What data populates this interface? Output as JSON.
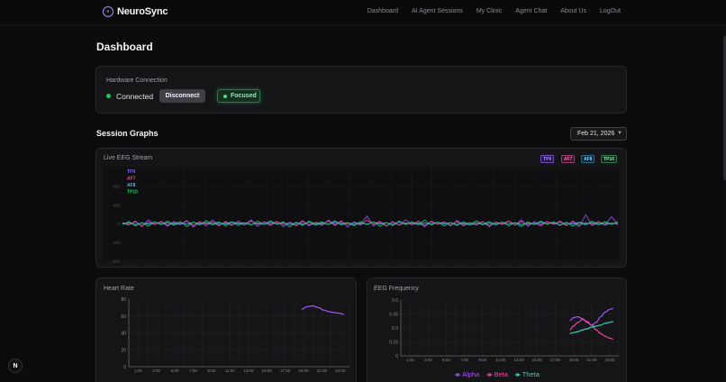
{
  "header": {
    "brand": "NeuroSync",
    "nav": [
      "Dashboard",
      "AI Agent Sessions",
      "My Clinic",
      "Agent Chat",
      "About Us",
      "LogOut"
    ]
  },
  "page": {
    "title": "Dashboard"
  },
  "hardware": {
    "label": "Hardware Connection",
    "status": "Connected",
    "disconnect_label": "Disconnect",
    "focus_label": "Focused"
  },
  "session": {
    "title": "Session Graphs",
    "date": "Feb 21, 2026"
  },
  "eeg_stream": {
    "title": "Live EEG Stream",
    "channels": [
      "TP9",
      "AF7",
      "AF8",
      "TP10"
    ],
    "channel_colors": [
      "#8b5cf6",
      "#ec4899",
      "#38bdf8",
      "#22c55e"
    ]
  },
  "heart_rate": {
    "title": "Heart Rate"
  },
  "eeg_frequency": {
    "title": "EEG Frequency"
  },
  "colors": {
    "accent": "#a78bfa",
    "connected": "#22c55e",
    "alpha": "#a855f7",
    "beta": "#ec4899",
    "theta": "#2dd4bf"
  },
  "chart_data": [
    {
      "type": "line",
      "title": "Live EEG Stream",
      "ylabel": "",
      "y_ticks": [
        "",
        "800",
        "400",
        "0",
        "-400",
        "-800"
      ],
      "series": [
        {
          "name": "TP9",
          "values": [
            0,
            -40,
            60,
            -80,
            90,
            -30,
            40,
            -70,
            50,
            -20,
            70,
            -90,
            30,
            -60,
            80,
            -40,
            20,
            -50,
            60,
            -30,
            90,
            -70,
            40,
            -20,
            50,
            -80,
            30,
            -40,
            70,
            -60,
            20,
            -50,
            80,
            -30,
            60,
            -90,
            40,
            -20,
            180,
            -60,
            30,
            -70,
            50,
            -40,
            90,
            -30,
            20,
            -80,
            60,
            -20,
            40,
            -60,
            70,
            -30,
            20,
            -40,
            50,
            -80,
            30,
            -20,
            60,
            -40,
            90,
            -70,
            40,
            -30,
            50,
            -20,
            60,
            -40,
            30,
            -80,
            210,
            -50,
            20,
            -40,
            170,
            -30
          ]
        },
        {
          "name": "AF7",
          "values": [
            20,
            -30,
            40,
            -60,
            30,
            -20,
            50,
            -40,
            20,
            -30,
            60,
            -50,
            40,
            -20,
            30,
            -60,
            50,
            -30,
            20,
            -40,
            60,
            -20,
            30,
            -50,
            40,
            -30,
            20,
            -60,
            50,
            -40,
            30,
            -20,
            60,
            -50,
            40,
            -30,
            20,
            -40,
            80,
            -20,
            50,
            -60,
            30,
            -40,
            20,
            -30,
            60,
            -50,
            40,
            -20,
            30,
            -40,
            50,
            -60,
            20,
            -30,
            40,
            -50,
            30,
            -20,
            60,
            -40,
            50,
            -30,
            20,
            -60,
            40,
            -20,
            30,
            -50,
            60,
            -40,
            20,
            -30,
            50,
            -40,
            20,
            -30
          ]
        },
        {
          "name": "AF8",
          "values": [
            -10,
            20,
            -30,
            10,
            -20,
            30,
            -10,
            20,
            -40,
            10,
            -20,
            30,
            -10,
            20,
            -30,
            10,
            -20,
            40,
            -10,
            20,
            -30,
            10,
            -20,
            30,
            -10,
            20,
            -30,
            10,
            -20,
            30,
            -40,
            10,
            -20,
            30,
            -10,
            20,
            -30,
            10,
            -20,
            30,
            -10,
            20,
            -30,
            40,
            -10,
            20,
            -30,
            10,
            -20,
            30,
            -10,
            20,
            -30,
            10,
            -40,
            20,
            -30,
            10,
            -20,
            30,
            -10,
            20,
            -30,
            10,
            -20,
            30,
            -10,
            20,
            -40,
            10,
            -20,
            30,
            -10,
            20,
            -30,
            10,
            -20,
            30
          ]
        },
        {
          "name": "TP10",
          "values": [
            -30,
            50,
            -60,
            20,
            -70,
            40,
            -30,
            60,
            -20,
            50,
            -80,
            30,
            -40,
            70,
            -20,
            40,
            -60,
            30,
            -50,
            20,
            -40,
            60,
            -30,
            70,
            -20,
            40,
            -90,
            30,
            -50,
            60,
            -20,
            40,
            -30,
            70,
            -40,
            20,
            -60,
            50,
            -30,
            40,
            -70,
            20,
            -50,
            60,
            -30,
            40,
            -20,
            80,
            -40,
            30,
            -60,
            20,
            -50,
            40,
            -30,
            70,
            -20,
            50,
            -40,
            30,
            -60,
            20,
            -80,
            40,
            -30,
            60,
            -20,
            40,
            -50,
            30,
            -70,
            20,
            -40,
            60,
            -30,
            50,
            -20,
            40
          ]
        }
      ]
    },
    {
      "type": "line",
      "title": "Heart Rate",
      "categories": [
        "1:00",
        "3:00",
        "5:00",
        "7:00",
        "9:00",
        "11:00",
        "13:00",
        "15:00",
        "17:00",
        "19:00",
        "21:00",
        "23:00"
      ],
      "ylim": [
        0,
        80
      ],
      "y_ticks": [
        0,
        20,
        40,
        60,
        80
      ],
      "series": [
        {
          "name": "",
          "x": [
            18.8,
            19.4,
            20.0,
            20.6,
            21.2,
            21.8,
            22.4,
            23.0,
            23.4
          ],
          "values": [
            68,
            71,
            72,
            70,
            67,
            65,
            64,
            63,
            62
          ]
        }
      ]
    },
    {
      "type": "line",
      "title": "EEG Frequency",
      "categories": [
        "1:00",
        "3:00",
        "5:00",
        "7:00",
        "9:00",
        "11:00",
        "13:00",
        "15:00",
        "17:00",
        "19:00",
        "21:00",
        "23:00"
      ],
      "ylim": [
        0,
        0.6
      ],
      "y_ticks": [
        "0",
        "0.15",
        "0.3",
        "0.45",
        "0.6"
      ],
      "legend_position": "bottom",
      "series": [
        {
          "name": "Alpha",
          "x": [
            18.6,
            19.0,
            19.5,
            20.0,
            20.5,
            21.0,
            21.5,
            22.0,
            22.5,
            23.0,
            23.4
          ],
          "values": [
            0.38,
            0.41,
            0.42,
            0.4,
            0.36,
            0.33,
            0.36,
            0.42,
            0.47,
            0.5,
            0.51
          ]
        },
        {
          "name": "Beta",
          "x": [
            18.6,
            19.0,
            19.5,
            20.0,
            20.5,
            21.0,
            21.5,
            22.0,
            22.5,
            23.0,
            23.4
          ],
          "values": [
            0.28,
            0.32,
            0.36,
            0.39,
            0.37,
            0.33,
            0.28,
            0.24,
            0.21,
            0.19,
            0.18
          ]
        },
        {
          "name": "Theta",
          "x": [
            18.6,
            19.0,
            19.5,
            20.0,
            20.5,
            21.0,
            21.5,
            22.0,
            22.5,
            23.0,
            23.4
          ],
          "values": [
            0.24,
            0.25,
            0.26,
            0.28,
            0.29,
            0.31,
            0.32,
            0.33,
            0.35,
            0.36,
            0.37
          ]
        }
      ]
    }
  ]
}
